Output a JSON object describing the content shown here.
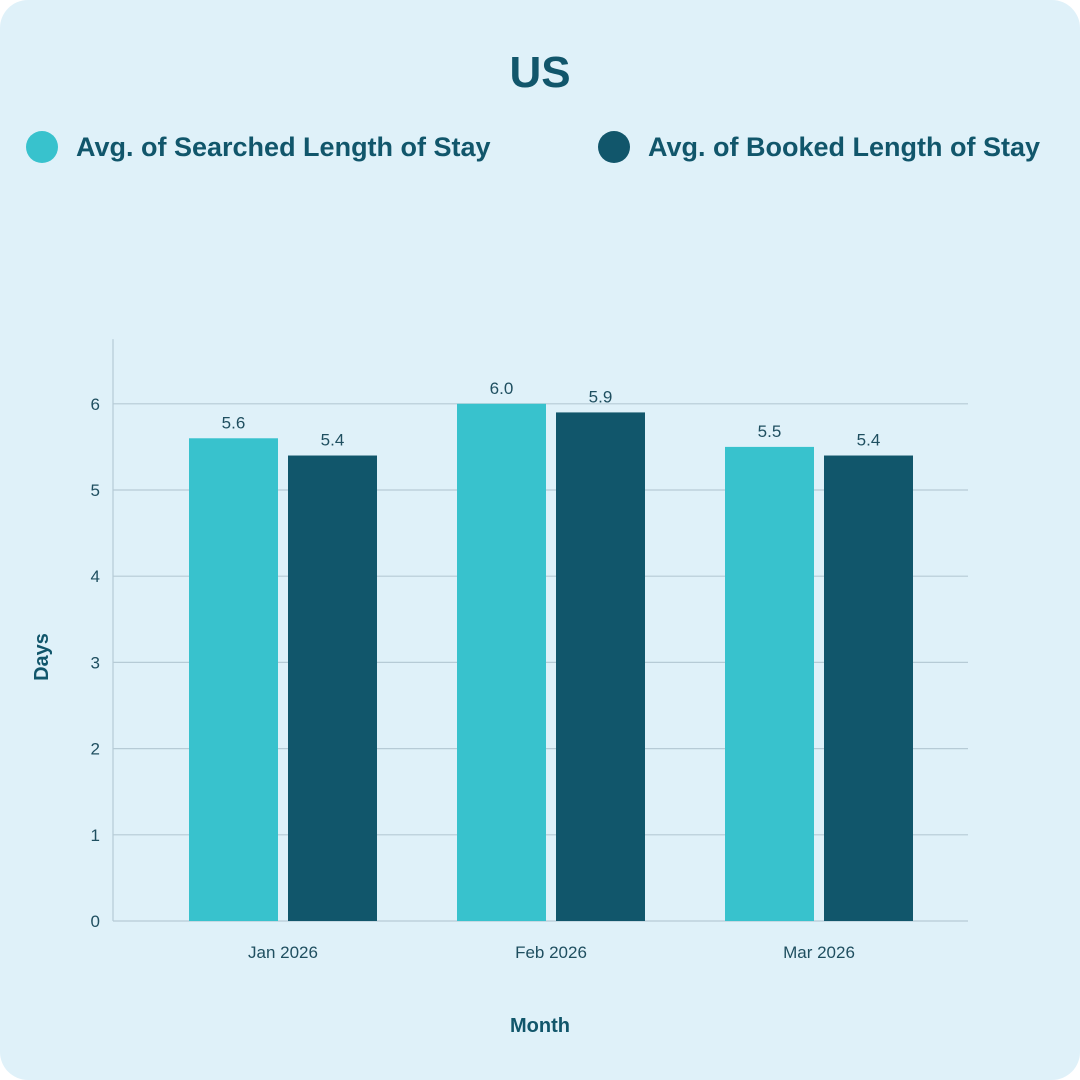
{
  "colors": {
    "background": "#dff1f9",
    "series_searched": "#38c2cd",
    "series_booked": "#11566b",
    "grid": "#b6cbd6",
    "text": "#11566b"
  },
  "chart_data": {
    "type": "bar",
    "title": "US",
    "xlabel": "Month",
    "ylabel": "Days",
    "categories": [
      "Jan 2026",
      "Feb 2026",
      "Mar 2026"
    ],
    "series": [
      {
        "name": "Avg. of Searched Length of Stay",
        "values": [
          5.6,
          6.0,
          5.5
        ],
        "data_labels": [
          "5.6",
          "6.0",
          "5.5"
        ],
        "color": "#38c2cd"
      },
      {
        "name": "Avg. of Booked Length of Stay",
        "values": [
          5.4,
          5.9,
          5.4
        ],
        "data_labels": [
          "5.4",
          "5.9",
          "5.4"
        ],
        "color": "#11566b"
      }
    ],
    "ylim": [
      0,
      6.75
    ],
    "yticks": [
      "0",
      "1",
      "2",
      "3",
      "4",
      "5",
      "6"
    ],
    "grid": true,
    "legend": "top"
  }
}
